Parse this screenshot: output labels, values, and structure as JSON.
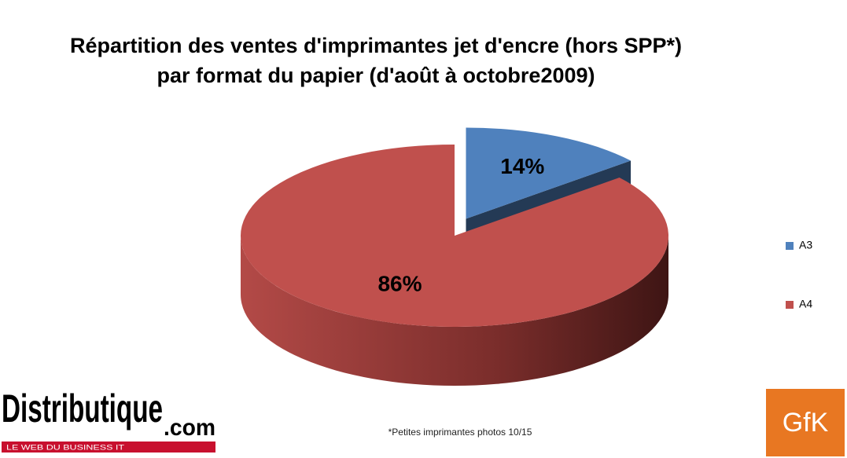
{
  "chart_data": {
    "type": "pie",
    "title": [
      "Répartition des ventes d'imprimantes jet d'encre (hors SPP*)",
      "par format du papier (d'août à octobre2009)"
    ],
    "categories": [
      "A3",
      "A4"
    ],
    "values": [
      14,
      86
    ],
    "value_labels": [
      "14%",
      "86%"
    ],
    "colors": [
      "#4f81bd",
      "#c0504d"
    ],
    "legend": "right",
    "footnote": "*Petites imprimantes photos  10/15"
  },
  "logos": {
    "brand": "Distributique",
    "suffix": ".com",
    "tagline": "LE WEB DU BUSINESS IT",
    "partner": "GfK"
  }
}
